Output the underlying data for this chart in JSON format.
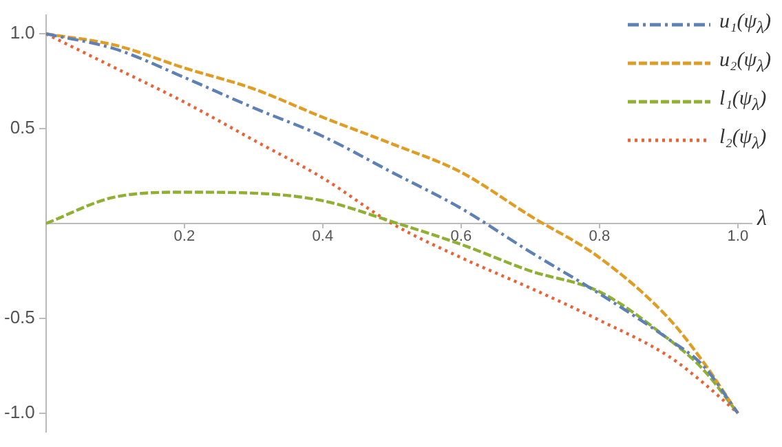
{
  "chart_data": {
    "type": "line",
    "xlabel": "λ",
    "x": [
      0,
      0.1,
      0.2,
      0.3,
      0.4,
      0.5,
      0.6,
      0.7,
      0.8,
      0.9,
      0.95,
      1
    ],
    "series": [
      {
        "name": "u₁(ψ$_{λ}$)",
        "color": "#5e81b5",
        "line_style": "dashdot",
        "values": [
          1,
          0.92,
          0.77,
          0.61,
          0.46,
          0.27,
          0.08,
          -0.15,
          -0.37,
          -0.61,
          -0.75,
          -1
        ]
      },
      {
        "name": "u₂(ψ$_{λ}$)",
        "color": "#e19c24",
        "line_style": "dashed",
        "values": [
          1,
          0.94,
          0.82,
          0.71,
          0.56,
          0.42,
          0.27,
          0.04,
          -0.18,
          -0.5,
          -0.73,
          -1
        ]
      },
      {
        "name": "l₁(ψ$_{λ}$)",
        "color": "#8fb032",
        "line_style": "dashed",
        "values": [
          0,
          0.14,
          0.165,
          0.16,
          0.12,
          0.01,
          -0.11,
          -0.25,
          -0.36,
          -0.61,
          -0.77,
          -1
        ]
      },
      {
        "name": "l₂(ψ$_{λ}$)",
        "color": "#eb6235",
        "line_style": "dotted",
        "values": [
          1,
          0.82,
          0.64,
          0.44,
          0.24,
          0,
          -0.18,
          -0.34,
          -0.51,
          -0.7,
          -0.84,
          -1
        ]
      }
    ],
    "xlim": [
      0,
      1.02
    ],
    "ylim": [
      -1.1,
      1.1
    ],
    "xticks": [
      0.2,
      0.4,
      0.6,
      0.8,
      {
        "value": 1,
        "label": "1.0"
      }
    ],
    "yticks": [
      {
        "value": -1,
        "label": "-1.0"
      },
      -0.5,
      0.5,
      {
        "value": 1,
        "label": "1.0"
      }
    ],
    "grid": false,
    "legend": "top right",
    "marker": "none"
  }
}
